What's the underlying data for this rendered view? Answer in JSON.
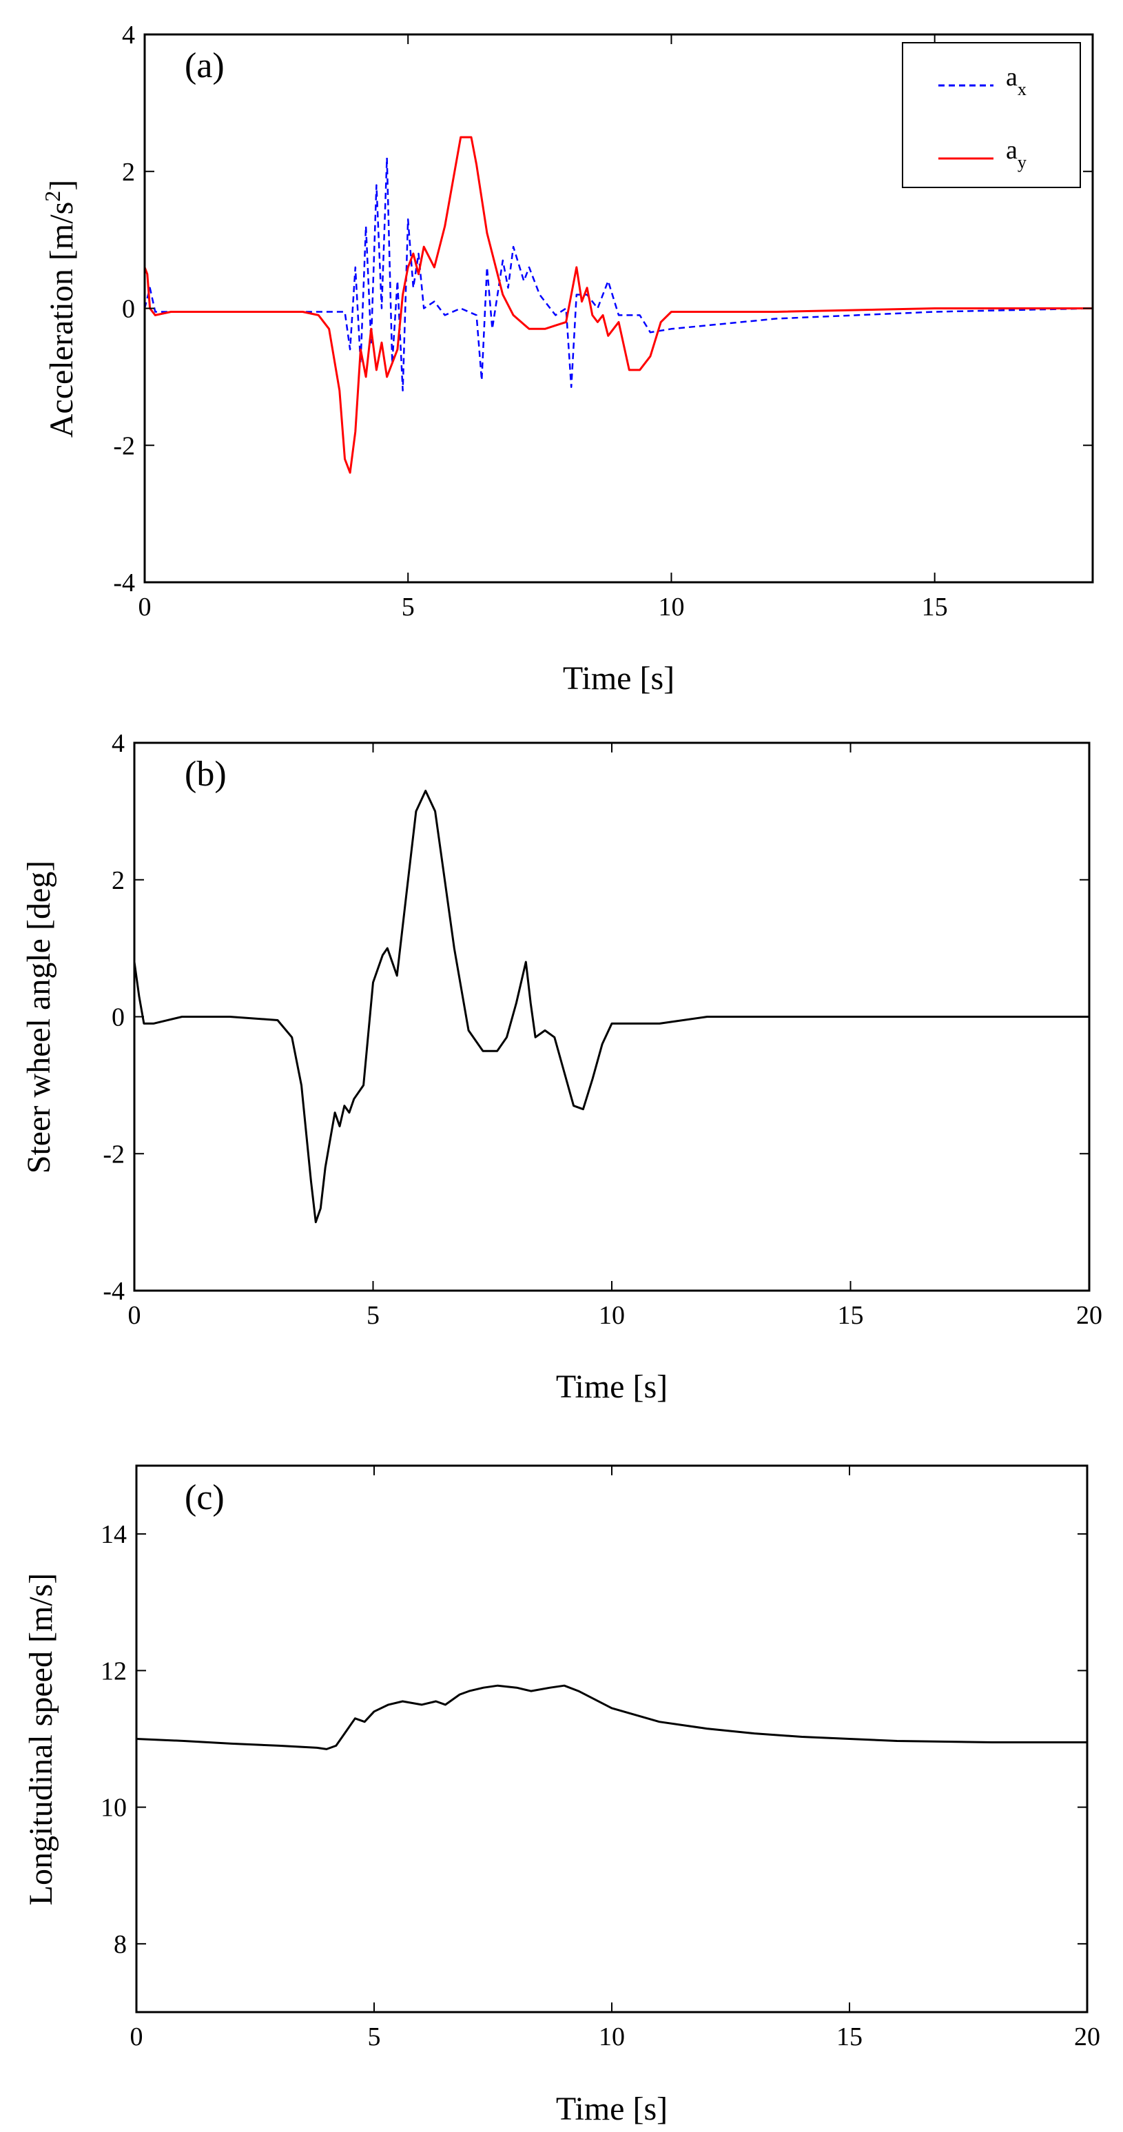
{
  "chart_data": [
    {
      "type": "line",
      "panel_label": "(a)",
      "xlabel": "Time [s]",
      "ylabel": "Acceleration [m/s",
      "ylabel_sup": "2",
      "ylabel_tail": "]",
      "xlim": [
        0,
        18
      ],
      "ylim": [
        -4,
        4
      ],
      "xticks": [
        "0",
        "5",
        "10",
        "15"
      ],
      "yticks": [
        "4",
        "2",
        "0",
        "-2",
        "-4"
      ],
      "legend_position": "top-right",
      "series": [
        {
          "name": "a",
          "name_sub": "x",
          "color": "#0000ff",
          "dash": "dashed",
          "x": [
            0,
            0.1,
            0.2,
            1,
            3,
            3.8,
            3.9,
            4.0,
            4.1,
            4.2,
            4.3,
            4.4,
            4.5,
            4.6,
            4.7,
            4.8,
            4.9,
            5.0,
            5.1,
            5.2,
            5.3,
            5.5,
            5.7,
            6.0,
            6.3,
            6.4,
            6.5,
            6.6,
            6.8,
            6.9,
            7.0,
            7.2,
            7.3,
            7.5,
            7.8,
            8.0,
            8.1,
            8.2,
            8.4,
            8.6,
            8.8,
            9.0,
            9.4,
            9.6,
            10,
            12,
            15,
            18
          ],
          "y": [
            0,
            0.3,
            -0.05,
            -0.05,
            -0.05,
            -0.05,
            -0.6,
            0.6,
            -0.8,
            1.2,
            -0.5,
            1.8,
            0,
            2.2,
            -0.8,
            0.4,
            -1.2,
            1.3,
            0.3,
            0.8,
            0,
            0.1,
            -0.1,
            0,
            -0.1,
            -1.05,
            0.6,
            -0.3,
            0.7,
            0.3,
            0.9,
            0.4,
            0.6,
            0.2,
            -0.1,
            0,
            -1.15,
            0.2,
            0.2,
            0,
            0.4,
            -0.1,
            -0.1,
            -0.35,
            -0.3,
            -0.15,
            -0.05,
            0
          ]
        },
        {
          "name": "a",
          "name_sub": "y",
          "color": "#ff0000",
          "dash": "solid",
          "x": [
            0,
            0.05,
            0.1,
            0.2,
            0.5,
            1,
            2,
            3,
            3.3,
            3.5,
            3.7,
            3.8,
            3.9,
            4.0,
            4.1,
            4.2,
            4.3,
            4.4,
            4.5,
            4.6,
            4.7,
            4.8,
            4.9,
            5.0,
            5.1,
            5.2,
            5.3,
            5.5,
            5.7,
            6.0,
            6.2,
            6.3,
            6.5,
            6.8,
            7.0,
            7.3,
            7.6,
            7.8,
            8.0,
            8.2,
            8.3,
            8.4,
            8.5,
            8.6,
            8.7,
            8.8,
            9.0,
            9.2,
            9.4,
            9.6,
            9.8,
            10,
            12,
            15,
            18
          ],
          "y": [
            0.6,
            0.5,
            0,
            -0.1,
            -0.05,
            -0.05,
            -0.05,
            -0.05,
            -0.1,
            -0.3,
            -1.2,
            -2.2,
            -2.4,
            -1.8,
            -0.6,
            -1.0,
            -0.3,
            -0.9,
            -0.5,
            -1.0,
            -0.8,
            -0.6,
            0.2,
            0.6,
            0.8,
            0.5,
            0.9,
            0.6,
            1.2,
            2.5,
            2.5,
            2.1,
            1.1,
            0.2,
            -0.1,
            -0.3,
            -0.3,
            -0.25,
            -0.2,
            0.6,
            0.1,
            0.3,
            -0.1,
            -0.2,
            -0.1,
            -0.4,
            -0.2,
            -0.9,
            -0.9,
            -0.7,
            -0.2,
            -0.05,
            -0.05,
            0,
            0
          ]
        }
      ]
    },
    {
      "type": "line",
      "panel_label": "(b)",
      "xlabel": "Time [s]",
      "ylabel": "Steer wheel angle [deg]",
      "xlim": [
        0,
        20
      ],
      "ylim": [
        -4,
        4
      ],
      "xticks": [
        "0",
        "5",
        "10",
        "15",
        "20"
      ],
      "yticks": [
        "4",
        "2",
        "0",
        "-2",
        "-4"
      ],
      "series": [
        {
          "color": "#000000",
          "dash": "solid",
          "x": [
            0,
            0.1,
            0.2,
            0.4,
            1,
            2,
            3,
            3.3,
            3.5,
            3.7,
            3.8,
            3.9,
            4.0,
            4.1,
            4.2,
            4.3,
            4.4,
            4.5,
            4.6,
            4.8,
            5.0,
            5.2,
            5.3,
            5.5,
            5.7,
            5.9,
            6.1,
            6.3,
            6.5,
            6.7,
            7.0,
            7.3,
            7.6,
            7.8,
            8.0,
            8.2,
            8.3,
            8.4,
            8.6,
            8.8,
            9.0,
            9.2,
            9.4,
            9.6,
            9.8,
            10,
            11,
            12,
            15,
            20
          ],
          "y": [
            0.8,
            0.3,
            -0.1,
            -0.1,
            0,
            0,
            -0.05,
            -0.3,
            -1.0,
            -2.4,
            -3.0,
            -2.8,
            -2.2,
            -1.8,
            -1.4,
            -1.6,
            -1.3,
            -1.4,
            -1.2,
            -1.0,
            0.5,
            0.9,
            1.0,
            0.6,
            1.8,
            3.0,
            3.3,
            3.0,
            2.0,
            1.0,
            -0.2,
            -0.5,
            -0.5,
            -0.3,
            0.2,
            0.8,
            0.2,
            -0.3,
            -0.2,
            -0.3,
            -0.8,
            -1.3,
            -1.35,
            -0.9,
            -0.4,
            -0.1,
            -0.1,
            0,
            0,
            0
          ]
        }
      ]
    },
    {
      "type": "line",
      "panel_label": "(c)",
      "xlabel": "Time [s]",
      "ylabel": "Longitudinal speed [m/s]",
      "xlim": [
        0,
        20
      ],
      "ylim": [
        7,
        15
      ],
      "xticks": [
        "0",
        "5",
        "10",
        "15",
        "20"
      ],
      "yticks": [
        "14",
        "12",
        "10",
        "8"
      ],
      "series": [
        {
          "color": "#000000",
          "dash": "solid",
          "x": [
            0,
            1,
            2,
            3,
            3.8,
            4.0,
            4.2,
            4.4,
            4.6,
            4.8,
            5.0,
            5.3,
            5.6,
            6.0,
            6.3,
            6.5,
            6.8,
            7.0,
            7.3,
            7.6,
            8.0,
            8.3,
            8.7,
            9.0,
            9.3,
            10,
            11,
            12,
            13,
            14,
            15,
            16,
            18,
            20
          ],
          "y": [
            11.0,
            10.97,
            10.93,
            10.9,
            10.87,
            10.85,
            10.9,
            11.1,
            11.3,
            11.25,
            11.4,
            11.5,
            11.55,
            11.5,
            11.55,
            11.5,
            11.65,
            11.7,
            11.75,
            11.78,
            11.75,
            11.7,
            11.75,
            11.78,
            11.7,
            11.45,
            11.25,
            11.15,
            11.08,
            11.03,
            11.0,
            10.97,
            10.95,
            10.95
          ]
        }
      ]
    }
  ]
}
